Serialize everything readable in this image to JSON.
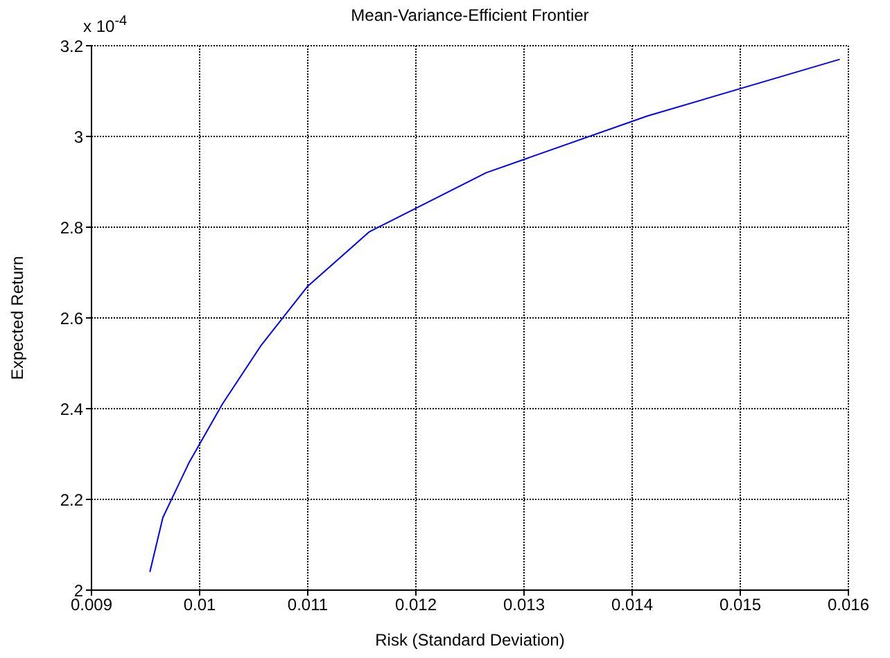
{
  "chart_data": {
    "type": "line",
    "title": "Mean-Variance-Efficient Frontier",
    "xlabel": "Risk (Standard Deviation)",
    "ylabel": "Expected Return",
    "annotations": [
      "x 10$^{-4}$"
    ],
    "x": [
      0.00954,
      0.00966,
      0.0099,
      0.01021,
      0.01057,
      0.011,
      0.01157,
      0.01265,
      0.01414,
      0.01592
    ],
    "series": [
      {
        "color": "#0000ff",
        "values": [
          2.04,
          2.16,
          2.28,
          2.41,
          2.54,
          2.67,
          2.79,
          2.92,
          3.045,
          3.17
        ]
      }
    ],
    "xlim": [
      0.009,
      0.016
    ],
    "xticks": [
      0.009,
      0.01,
      0.011,
      0.012,
      0.013,
      0.014,
      0.015,
      0.016
    ],
    "ylim": [
      2,
      3.2
    ],
    "yticks": [
      2,
      2.2,
      2.4,
      2.6,
      2.8,
      3,
      3.2
    ],
    "grid": true,
    "marker": "none",
    "line_style": "solid"
  }
}
